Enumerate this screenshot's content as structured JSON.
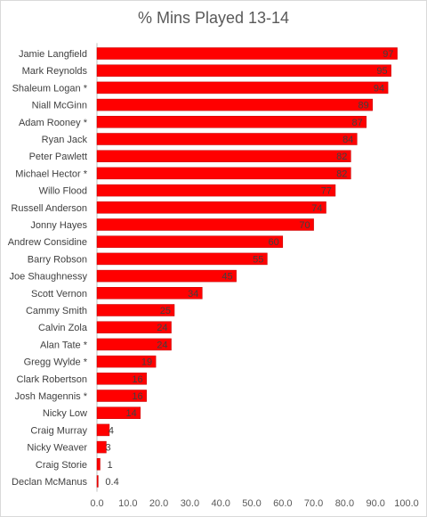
{
  "chart_data": {
    "type": "bar",
    "orientation": "horizontal",
    "title": "% Mins Played 13-14",
    "categories": [
      "Jamie Langfield",
      "Mark Reynolds",
      "Shaleum Logan *",
      "Niall McGinn",
      "Adam Rooney *",
      "Ryan Jack",
      "Peter Pawlett",
      "Michael Hector *",
      "Willo Flood",
      "Russell Anderson",
      "Jonny Hayes",
      "Andrew Considine",
      "Barry Robson",
      "Joe Shaughnessy",
      "Scott Vernon",
      "Cammy Smith",
      "Calvin Zola",
      "Alan Tate *",
      "Gregg Wylde *",
      "Clark Robertson",
      "Josh Magennis *",
      "Nicky Low",
      "Craig Murray",
      "Nicky Weaver",
      "Craig Storie",
      "Declan McManus"
    ],
    "values": [
      97,
      95,
      94,
      89,
      87,
      84,
      82,
      82,
      77,
      74,
      70,
      60,
      55,
      45,
      34,
      25,
      24,
      24,
      19,
      16,
      16,
      14,
      4,
      3,
      1,
      0.4
    ],
    "data_labels": [
      "97",
      "95",
      "94",
      "89",
      "87",
      "84",
      "82",
      "82",
      "77",
      "74",
      "70",
      "60",
      "55",
      "45",
      "34",
      "25",
      "24",
      "24",
      "19",
      "16",
      "16",
      "14",
      "4",
      "3",
      "1",
      "0.4"
    ],
    "xlim": [
      0,
      100
    ],
    "xticks": [
      "0.0",
      "10.0",
      "20.0",
      "30.0",
      "40.0",
      "50.0",
      "60.0",
      "70.0",
      "80.0",
      "90.0",
      "100.0"
    ],
    "bar_color": "#ff0000",
    "bar_edge_color": "#c00000",
    "grid": false,
    "legend": "none"
  }
}
